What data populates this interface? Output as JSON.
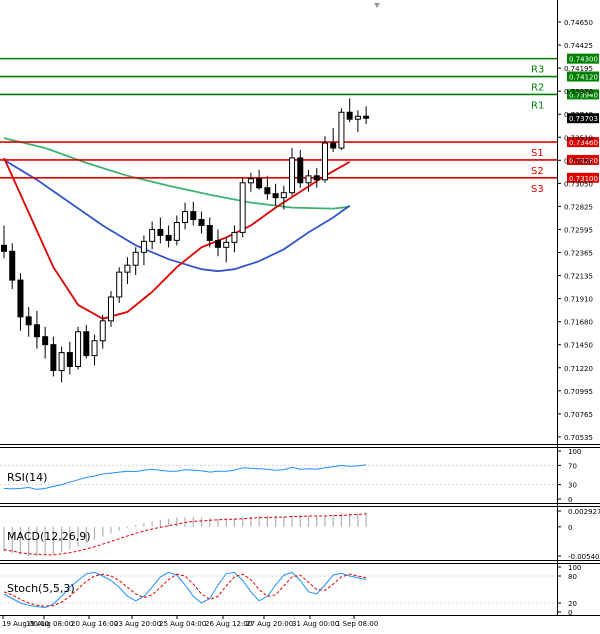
{
  "chart_data": {
    "type": "candlestick",
    "main": {
      "price_axis_ticks": [
        "0.74650",
        "0.74425",
        "0.74195",
        "0.73970",
        "0.73740",
        "0.73510",
        "0.73280",
        "0.73050",
        "0.72825",
        "0.72595",
        "0.72365",
        "0.72135",
        "0.71910",
        "0.71680",
        "0.71450",
        "0.71220",
        "0.70995",
        "0.70765",
        "0.70535"
      ],
      "ylim": [
        0.7046,
        0.7483
      ],
      "current_price": "0.73703",
      "levels": [
        {
          "name": "R3",
          "value": 0.743,
          "label": "0.74300",
          "color": "#008000"
        },
        {
          "name": "R2",
          "value": 0.7412,
          "label": "0.74120",
          "color": "#008000"
        },
        {
          "name": "R1",
          "value": 0.7394,
          "label": "0.73940",
          "color": "#008000"
        },
        {
          "name": "S1",
          "value": 0.7346,
          "label": "0.73460",
          "color": "#e00000"
        },
        {
          "name": "S2",
          "value": 0.7328,
          "label": "0.73280",
          "color": "#e00000"
        },
        {
          "name": "S3",
          "value": 0.731,
          "label": "0.73100",
          "color": "#e00000"
        }
      ],
      "candles": [
        [
          0.7242,
          0.7262,
          0.7229,
          0.7236
        ],
        [
          0.7236,
          0.7244,
          0.7198,
          0.7207
        ],
        [
          0.7207,
          0.7214,
          0.7156,
          0.717
        ],
        [
          0.717,
          0.718,
          0.715,
          0.7162
        ],
        [
          0.7162,
          0.7176,
          0.7138,
          0.715
        ],
        [
          0.715,
          0.716,
          0.7128,
          0.7142
        ],
        [
          0.7142,
          0.715,
          0.711,
          0.7116
        ],
        [
          0.7116,
          0.714,
          0.7104,
          0.7134
        ],
        [
          0.7134,
          0.7145,
          0.7112,
          0.712
        ],
        [
          0.712,
          0.716,
          0.7117,
          0.7155
        ],
        [
          0.7155,
          0.7162,
          0.7128,
          0.7131
        ],
        [
          0.7131,
          0.7152,
          0.7121,
          0.7146
        ],
        [
          0.7146,
          0.7172,
          0.7138,
          0.7166
        ],
        [
          0.7166,
          0.7196,
          0.716,
          0.719
        ],
        [
          0.719,
          0.722,
          0.7184,
          0.7215
        ],
        [
          0.7215,
          0.723,
          0.7203,
          0.7222
        ],
        [
          0.7222,
          0.724,
          0.7212,
          0.7235
        ],
        [
          0.7235,
          0.7252,
          0.7222,
          0.7246
        ],
        [
          0.7246,
          0.7266,
          0.7238,
          0.7258
        ],
        [
          0.7258,
          0.727,
          0.7244,
          0.7252
        ],
        [
          0.7252,
          0.7262,
          0.724,
          0.7247
        ],
        [
          0.7247,
          0.7272,
          0.7242,
          0.7265
        ],
        [
          0.7265,
          0.7285,
          0.7258,
          0.7276
        ],
        [
          0.7276,
          0.7286,
          0.7262,
          0.7268
        ],
        [
          0.7268,
          0.7276,
          0.7254,
          0.7262
        ],
        [
          0.7262,
          0.727,
          0.724,
          0.7247
        ],
        [
          0.7247,
          0.7258,
          0.7231,
          0.724
        ],
        [
          0.724,
          0.725,
          0.7225,
          0.7245
        ],
        [
          0.7245,
          0.7262,
          0.7235,
          0.7255
        ],
        [
          0.7255,
          0.731,
          0.725,
          0.7305
        ],
        [
          0.7305,
          0.7315,
          0.7296,
          0.7309
        ],
        [
          0.7309,
          0.7318,
          0.7298,
          0.73
        ],
        [
          0.73,
          0.7312,
          0.7288,
          0.7294
        ],
        [
          0.7294,
          0.7304,
          0.7282,
          0.729
        ],
        [
          0.729,
          0.7302,
          0.7278,
          0.7295
        ],
        [
          0.7295,
          0.734,
          0.7292,
          0.733
        ],
        [
          0.733,
          0.7338,
          0.73,
          0.7305
        ],
        [
          0.7305,
          0.7318,
          0.7296,
          0.7312
        ],
        [
          0.7312,
          0.732,
          0.73,
          0.7308
        ],
        [
          0.7308,
          0.7352,
          0.7305,
          0.7345
        ],
        [
          0.7345,
          0.736,
          0.7336,
          0.734
        ],
        [
          0.734,
          0.738,
          0.7338,
          0.7376
        ],
        [
          0.7376,
          0.739,
          0.7366,
          0.7369
        ],
        [
          0.7369,
          0.7378,
          0.7356,
          0.7372
        ],
        [
          0.7372,
          0.7382,
          0.7364,
          0.737
        ]
      ],
      "ma_red": [
        [
          0,
          0.733
        ],
        [
          3,
          0.7275
        ],
        [
          6,
          0.722
        ],
        [
          9,
          0.7182
        ],
        [
          12,
          0.7168
        ],
        [
          15,
          0.7175
        ],
        [
          18,
          0.7195
        ],
        [
          21,
          0.722
        ],
        [
          24,
          0.724
        ],
        [
          27,
          0.725
        ],
        [
          30,
          0.7262
        ],
        [
          33,
          0.728
        ],
        [
          36,
          0.7296
        ],
        [
          39,
          0.7312
        ],
        [
          42,
          0.7326
        ]
      ],
      "ma_green": [
        [
          0,
          0.735
        ],
        [
          5,
          0.734
        ],
        [
          10,
          0.7325
        ],
        [
          15,
          0.7312
        ],
        [
          20,
          0.7302
        ],
        [
          25,
          0.7293
        ],
        [
          30,
          0.7285
        ],
        [
          35,
          0.728
        ],
        [
          40,
          0.7279
        ],
        [
          42,
          0.7281
        ]
      ],
      "ma_blue": [
        [
          0,
          0.7328
        ],
        [
          4,
          0.7308
        ],
        [
          8,
          0.7285
        ],
        [
          12,
          0.7262
        ],
        [
          16,
          0.7242
        ],
        [
          20,
          0.7228
        ],
        [
          24,
          0.7218
        ],
        [
          26,
          0.7216
        ],
        [
          28,
          0.7218
        ],
        [
          31,
          0.7226
        ],
        [
          34,
          0.7238
        ],
        [
          37,
          0.7255
        ],
        [
          40,
          0.727
        ],
        [
          42,
          0.7282
        ]
      ]
    },
    "rsi": {
      "label": "RSI(14)",
      "ticks": [
        "100",
        "70",
        "30",
        "0"
      ],
      "values": [
        22,
        21,
        22,
        24,
        20,
        22,
        26,
        30,
        35,
        40,
        45,
        48,
        52,
        54,
        56,
        58,
        57,
        60,
        62,
        60,
        58,
        58,
        61,
        60,
        59,
        56,
        58,
        58,
        60,
        65,
        64,
        63,
        62,
        60,
        61,
        66,
        62,
        63,
        62,
        65,
        67,
        70,
        68,
        69,
        71
      ]
    },
    "macd": {
      "label": "MACD(12,26,9)",
      "ticks": [
        "0.002927",
        "0",
        "-0.005408"
      ],
      "histogram": [
        -0.0046,
        -0.0049,
        -0.0052,
        -0.0054,
        -0.0054,
        -0.0053,
        -0.0051,
        -0.0047,
        -0.0042,
        -0.0036,
        -0.003,
        -0.0024,
        -0.0018,
        -0.0012,
        -0.0007,
        -0.0002,
        0.0003,
        0.0007,
        0.001,
        0.0013,
        0.0015,
        0.0017,
        0.0018,
        0.0018,
        0.0017,
        0.0016,
        0.0015,
        0.0015,
        0.0016,
        0.0018,
        0.0019,
        0.002,
        0.002,
        0.002,
        0.002,
        0.0021,
        0.0021,
        0.002,
        0.002,
        0.0021,
        0.0022,
        0.0024,
        0.0025,
        0.0026,
        0.0027
      ],
      "signal": [
        -0.0042,
        -0.0045,
        -0.0048,
        -0.005,
        -0.0051,
        -0.0052,
        -0.0052,
        -0.005,
        -0.0048,
        -0.0045,
        -0.0041,
        -0.0037,
        -0.0032,
        -0.0027,
        -0.0022,
        -0.0017,
        -0.0012,
        -0.0008,
        -0.0004,
        -0.0001,
        0.0002,
        0.0005,
        0.0008,
        0.001,
        0.0011,
        0.0012,
        0.0013,
        0.0014,
        0.0014,
        0.0015,
        0.0016,
        0.0017,
        0.0017,
        0.0018,
        0.0018,
        0.0019,
        0.0019,
        0.002,
        0.002,
        0.002,
        0.0021,
        0.0021,
        0.0022,
        0.0023,
        0.0024
      ]
    },
    "stoch": {
      "label": "Stoch(5,5,3)",
      "ticks": [
        "100",
        "80",
        "20",
        "0"
      ],
      "main": [
        40,
        30,
        20,
        15,
        12,
        10,
        18,
        35,
        55,
        70,
        85,
        88,
        80,
        70,
        55,
        35,
        25,
        35,
        55,
        78,
        88,
        82,
        60,
        35,
        20,
        30,
        60,
        85,
        88,
        70,
        45,
        25,
        35,
        60,
        82,
        88,
        70,
        45,
        40,
        60,
        82,
        86,
        80,
        76,
        72
      ],
      "signal": [
        45,
        38,
        28,
        20,
        15,
        13,
        14,
        22,
        35,
        52,
        68,
        80,
        84,
        80,
        70,
        55,
        40,
        32,
        38,
        55,
        72,
        84,
        80,
        62,
        40,
        28,
        35,
        58,
        78,
        84,
        72,
        50,
        35,
        38,
        58,
        78,
        82,
        66,
        50,
        48,
        62,
        78,
        84,
        80,
        76
      ]
    },
    "x_labels": [
      "19 Aug 00:00",
      "19 Aug 08:00",
      "20 Aug 16:00",
      "23 Aug 20:00",
      "25 Aug 04:00",
      "26 Aug 12:00",
      "27 Aug 20:00",
      "31 Aug 00:00",
      "1 Sep 08:00"
    ],
    "x_label_positions": [
      0,
      7,
      14,
      21,
      27,
      34,
      40,
      46,
      53
    ]
  },
  "colors": {
    "bg": "#ffffff",
    "candle_up": "#ffffff",
    "candle_down": "#000000",
    "candle_stroke": "#000000",
    "ma_red": "#e00000",
    "ma_green": "#3cb371",
    "ma_blue": "#3355cc",
    "rsi": "#1e90ff",
    "macd_hist": "#b0b0b0",
    "macd_signal": "#e00000",
    "stoch_main": "#1e90ff",
    "stoch_signal": "#e00000",
    "axis_label_bg": "#000000",
    "axis_label_fg": "#ffffff",
    "grid": "#d8d8d8"
  }
}
